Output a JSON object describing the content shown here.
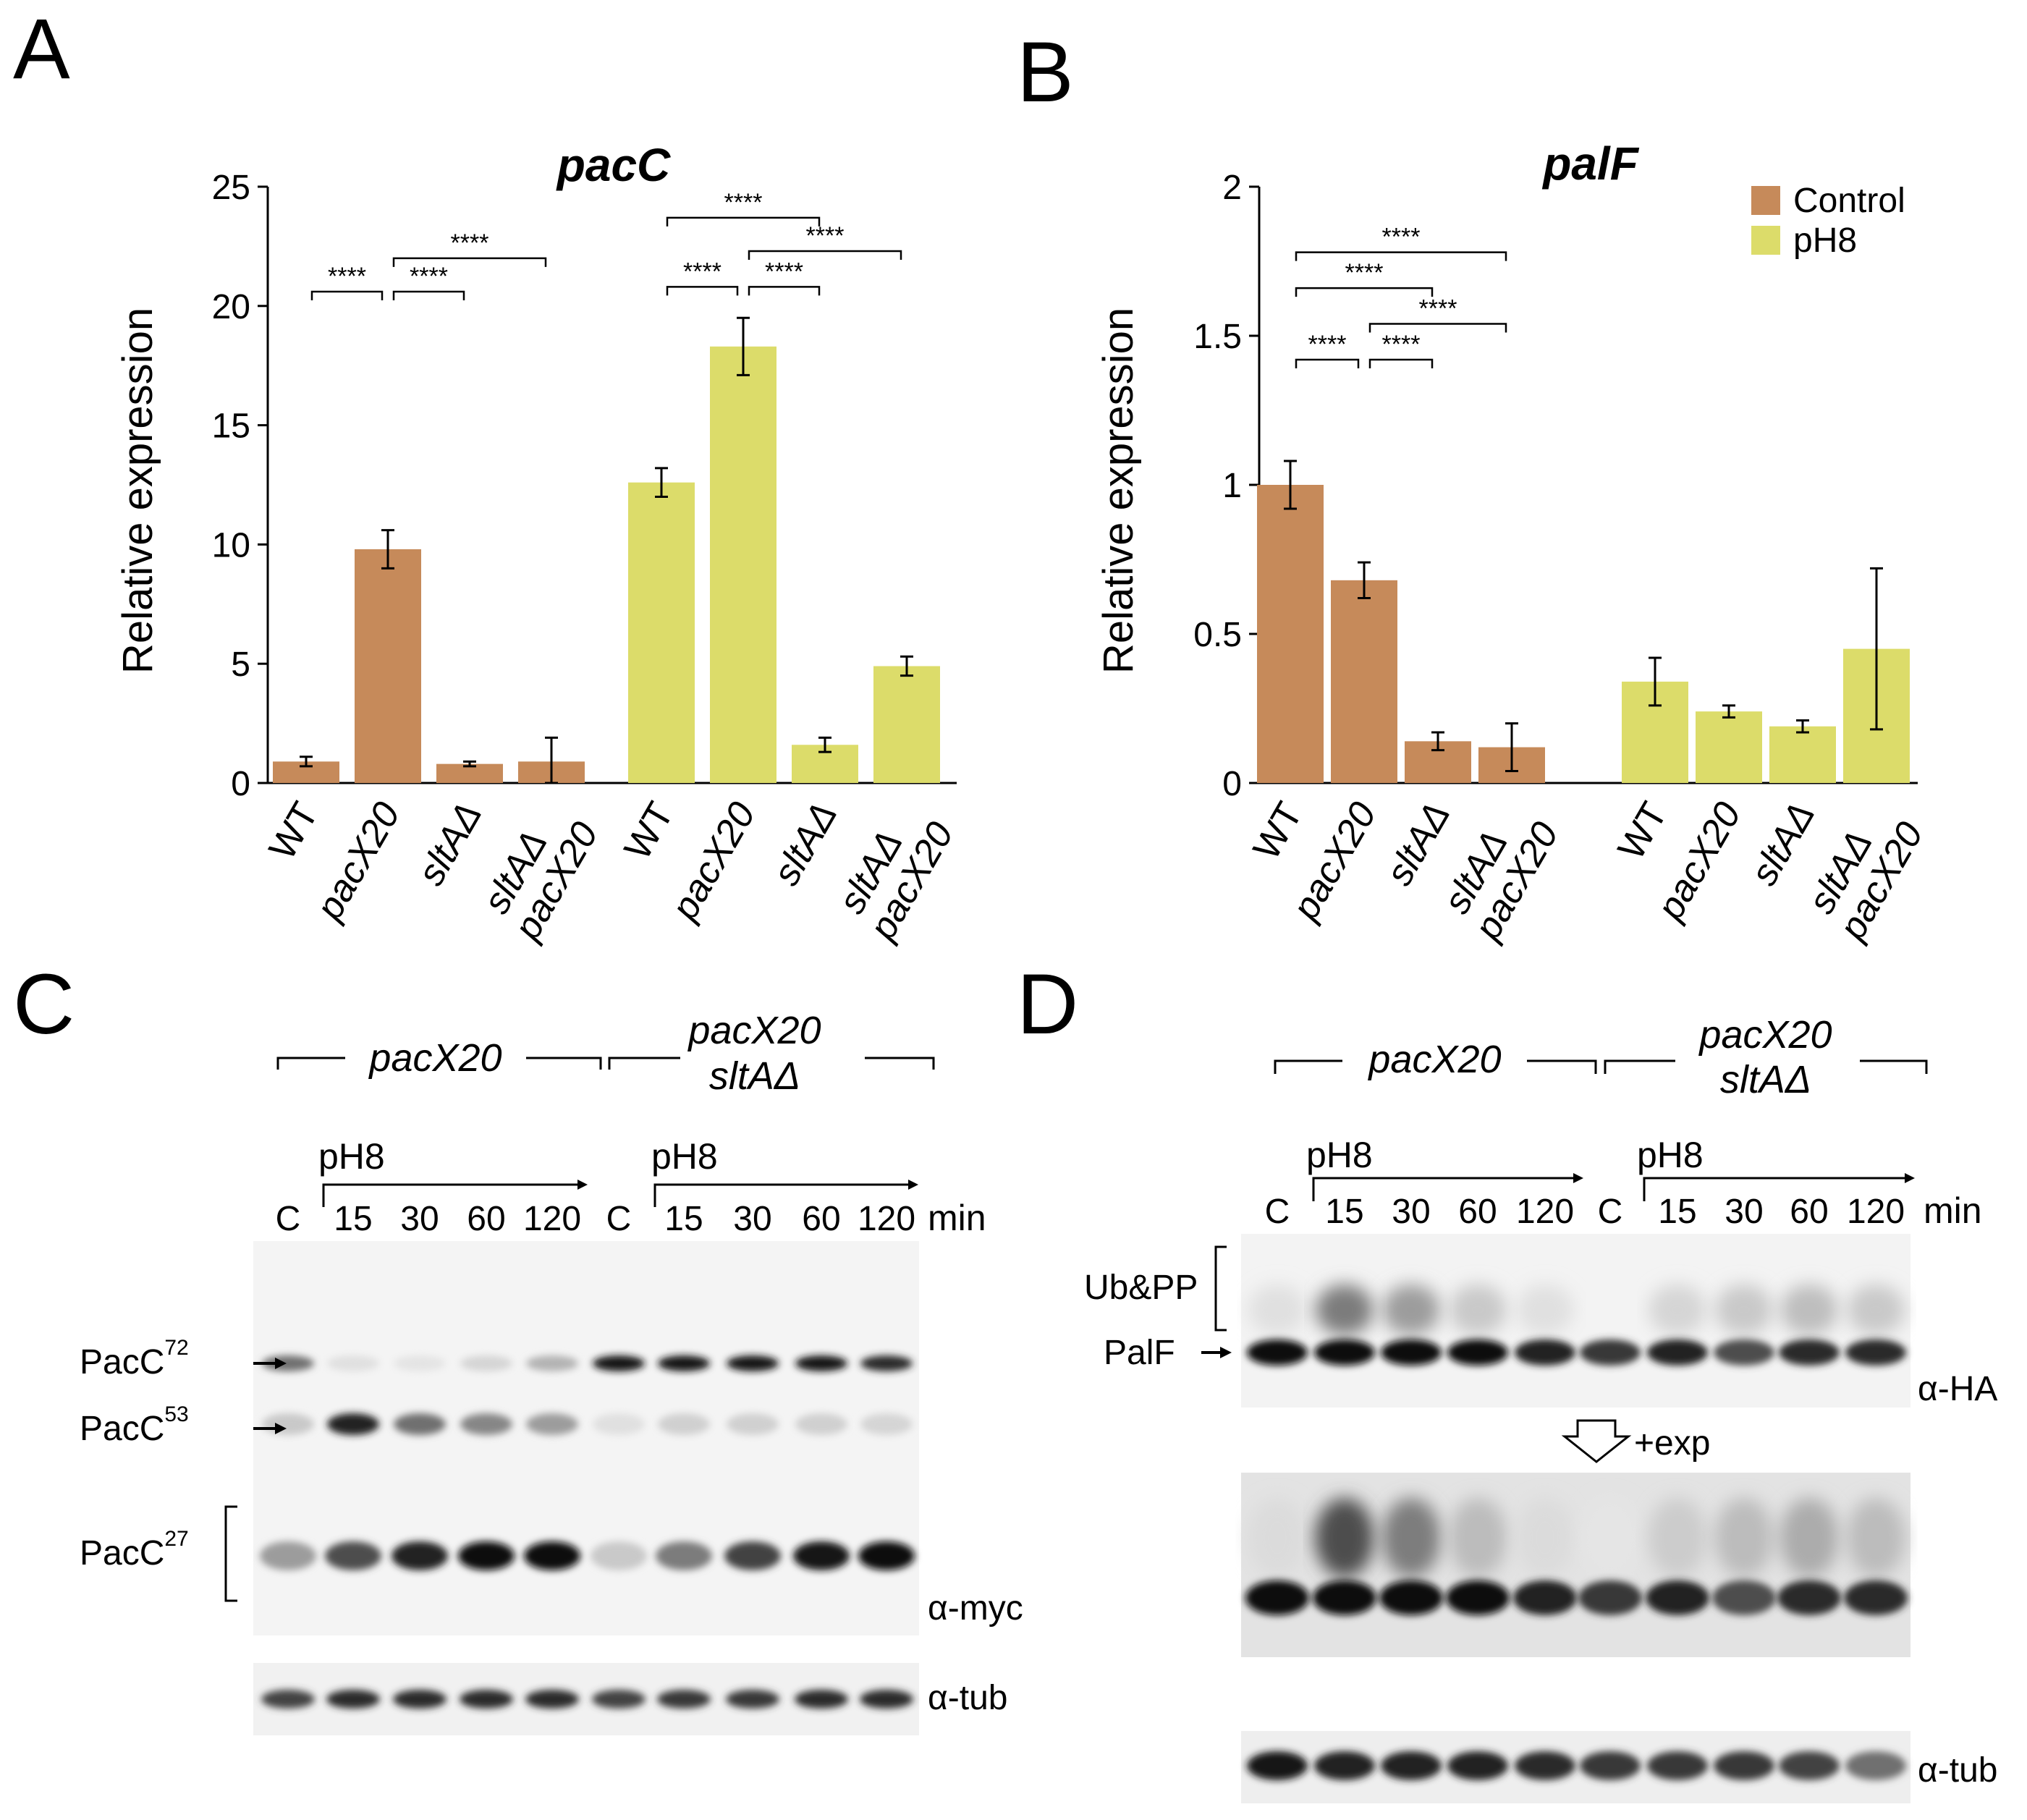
{
  "panels": {
    "A": "A",
    "B": "B",
    "C": "C",
    "D": "D"
  },
  "chart_data": [
    {
      "type": "bar",
      "panel": "A",
      "title": "pacC",
      "ylabel": "Relative expression",
      "xlabel": "",
      "ylim": [
        0,
        25
      ],
      "yticks": [
        0,
        5,
        10,
        15,
        20,
        25
      ],
      "categories": [
        "WT",
        "pacX20",
        "sltAΔ",
        "sltAΔ pacX20"
      ],
      "series": [
        {
          "name": "Control",
          "color": "#c68a5a",
          "values": [
            0.9,
            9.8,
            0.8,
            0.9
          ],
          "errors": [
            0.2,
            0.8,
            0.1,
            1.0
          ]
        },
        {
          "name": "pH8",
          "color": "#dcdc6a",
          "values": [
            12.6,
            18.3,
            1.6,
            4.9
          ],
          "errors": [
            0.6,
            1.2,
            0.3,
            0.4
          ]
        }
      ],
      "significance": [
        {
          "label": "****",
          "group": 0,
          "from": 0,
          "to": 1,
          "y": 20.6
        },
        {
          "label": "****",
          "group": 0,
          "from": 1,
          "to": 2,
          "y": 20.6
        },
        {
          "label": "****",
          "group": 0,
          "from": 1,
          "to": 3,
          "y": 22.0
        },
        {
          "label": "****",
          "group": 1,
          "from": 0,
          "to": 1,
          "y": 20.8
        },
        {
          "label": "****",
          "group": 1,
          "from": 1,
          "to": 2,
          "y": 20.8
        },
        {
          "label": "****",
          "group": 1,
          "from": 1,
          "to": 3,
          "y": 22.3
        },
        {
          "label": "****",
          "group": 1,
          "from": 0,
          "to": 2,
          "y": 23.7
        }
      ]
    },
    {
      "type": "bar",
      "panel": "B",
      "title": "palF",
      "ylabel": "Relative expression",
      "xlabel": "",
      "ylim": [
        0,
        2
      ],
      "yticks": [
        0,
        0.5,
        1,
        1.5,
        2
      ],
      "yticklabels": [
        "0",
        "0.5",
        "1",
        "1.5",
        "2"
      ],
      "categories": [
        "WT",
        "pacX20",
        "sltAΔ",
        "sltAΔ pacX20"
      ],
      "legend": [
        "Control",
        "pH8"
      ],
      "series": [
        {
          "name": "Control",
          "color": "#c68a5a",
          "values": [
            1.0,
            0.68,
            0.14,
            0.12
          ],
          "errors": [
            0.08,
            0.06,
            0.03,
            0.08
          ]
        },
        {
          "name": "pH8",
          "color": "#dcdc6a",
          "values": [
            0.34,
            0.24,
            0.19,
            0.45
          ],
          "errors": [
            0.08,
            0.02,
            0.02,
            0.27
          ]
        }
      ],
      "significance": [
        {
          "label": "****",
          "group": 0,
          "from": 0,
          "to": 1,
          "y": 1.42
        },
        {
          "label": "****",
          "group": 0,
          "from": 1,
          "to": 2,
          "y": 1.42
        },
        {
          "label": "****",
          "group": 0,
          "from": 1,
          "to": 3,
          "y": 1.54
        },
        {
          "label": "****",
          "group": 0,
          "from": 0,
          "to": 2,
          "y": 1.66
        },
        {
          "label": "****",
          "group": 0,
          "from": 0,
          "to": 3,
          "y": 1.78
        }
      ]
    }
  ],
  "blotC": {
    "group1": "pacX20",
    "group2_line1": "pacX20",
    "group2_line2": "sltAΔ",
    "ph": "pH8",
    "lanes": [
      "C",
      "15",
      "30",
      "60",
      "120",
      "C",
      "15",
      "30",
      "60",
      "120"
    ],
    "unit": "min",
    "labels": {
      "pac72": "PacC",
      "pac72_sup": "72",
      "pac53": "PacC",
      "pac53_sup": "53",
      "pac27": "PacC",
      "pac27_sup": "27"
    },
    "antibody1": "α-myc",
    "antibody2": "α-tub",
    "pac72_intensity": [
      0.55,
      0.05,
      0.03,
      0.1,
      0.25,
      0.95,
      0.95,
      0.95,
      0.95,
      0.85
    ],
    "pac53_intensity": [
      0.15,
      0.9,
      0.55,
      0.45,
      0.35,
      0.05,
      0.12,
      0.12,
      0.12,
      0.1
    ],
    "pac27_intensity": [
      0.35,
      0.7,
      0.9,
      1.0,
      1.0,
      0.15,
      0.5,
      0.75,
      0.95,
      1.0
    ],
    "tub_intensity": [
      0.75,
      0.85,
      0.85,
      0.85,
      0.85,
      0.75,
      0.8,
      0.8,
      0.85,
      0.85
    ]
  },
  "blotD": {
    "group1": "pacX20",
    "group2_line1": "pacX20",
    "group2_line2": "sltAΔ",
    "ph": "pH8",
    "lanes": [
      "C",
      "15",
      "30",
      "60",
      "120",
      "C",
      "15",
      "30",
      "60",
      "120"
    ],
    "unit": "min",
    "labels": {
      "ubpp": "Ub&PP",
      "palf": "PalF"
    },
    "antibody1": "α-HA",
    "exposure": "+exp",
    "antibody2": "α-tub",
    "palf_intensity": [
      1.0,
      1.0,
      1.0,
      1.0,
      0.9,
      0.8,
      0.9,
      0.7,
      0.85,
      0.85
    ],
    "smear_intensity": [
      0.05,
      0.5,
      0.35,
      0.15,
      0.05,
      0.02,
      0.1,
      0.15,
      0.2,
      0.15
    ],
    "tub_intensity": [
      0.95,
      0.9,
      0.9,
      0.9,
      0.85,
      0.8,
      0.8,
      0.8,
      0.75,
      0.55
    ]
  }
}
